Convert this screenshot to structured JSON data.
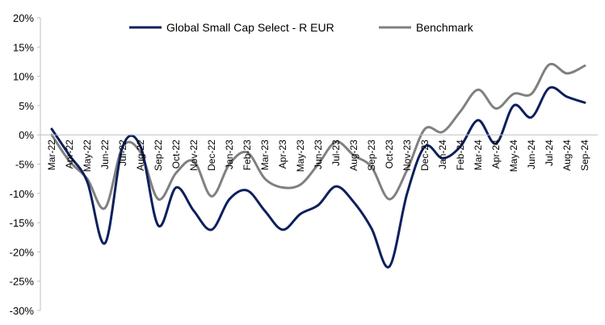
{
  "chart_data": {
    "type": "line",
    "title": "",
    "xlabel": "",
    "ylabel": "",
    "ylim": [
      -30,
      20
    ],
    "y_ticks": [
      "20%",
      "15%",
      "10%",
      "5%",
      "0%",
      "-5%",
      "-10%",
      "-15%",
      "-20%",
      "-25%",
      "-30%"
    ],
    "y_tick_values": [
      20,
      15,
      10,
      5,
      0,
      -5,
      -10,
      -15,
      -20,
      -25,
      -30
    ],
    "categories": [
      "Mar-22",
      "Apr-22",
      "May-22",
      "Jun-22",
      "Jul-22",
      "Aug-22",
      "Sep-22",
      "Oct-22",
      "Nov-22",
      "Dec-22",
      "Jan-23",
      "Feb-23",
      "Mar-23",
      "Apr-23",
      "May-23",
      "Jun-23",
      "Jul-23",
      "Aug-23",
      "Sep-23",
      "Oct-23",
      "Nov-23",
      "Dec-23",
      "Jan-24",
      "Feb-24",
      "Mar-24",
      "Apr-24",
      "May-24",
      "Jun-24",
      "Jul-24",
      "Aug-24",
      "Sep-24"
    ],
    "legend_position": "top",
    "grid": false,
    "series": [
      {
        "name": "Global Small Cap Select - R EUR",
        "color": "#0d1f5c",
        "values": [
          1.0,
          -3.5,
          -8.0,
          -18.5,
          -2.0,
          -2.0,
          -15.5,
          -9.0,
          -13.0,
          -16.2,
          -11.0,
          -9.5,
          -13.0,
          -16.2,
          -13.5,
          -12.0,
          -8.8,
          -11.5,
          -16.0,
          -22.5,
          -10.0,
          -2.0,
          -4.0,
          -2.0,
          2.5,
          -1.5,
          5.0,
          3.0,
          8.0,
          6.5,
          5.5
        ]
      },
      {
        "name": "Benchmark",
        "color": "#808080",
        "values": [
          0.0,
          -4.5,
          -7.5,
          -12.5,
          -2.0,
          -3.0,
          -11.0,
          -6.5,
          -4.5,
          -10.5,
          -5.0,
          -3.0,
          -7.5,
          -9.0,
          -8.5,
          -5.0,
          -1.2,
          -3.5,
          -5.5,
          -11.0,
          -6.0,
          1.0,
          0.5,
          4.0,
          7.7,
          4.5,
          7.0,
          7.0,
          12.0,
          10.5,
          11.8
        ]
      }
    ]
  }
}
